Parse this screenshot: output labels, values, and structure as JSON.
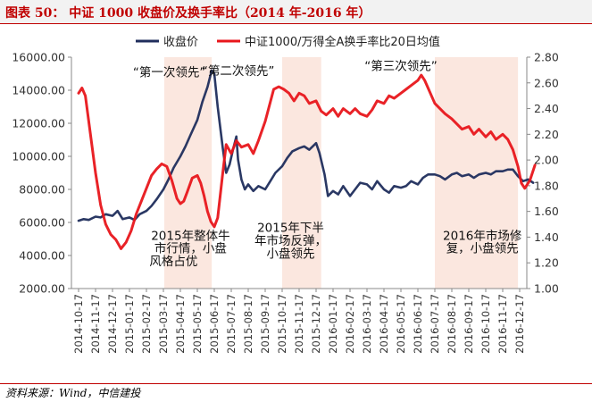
{
  "title": "图表 50：  中证 1000 收盘价及换手率比（2014 年-2016 年）",
  "source": "资料来源：Wind，中信建投",
  "colors": {
    "close": "#1f2d5c",
    "ratio": "#e8161b",
    "shade": "#fbe7df",
    "title": "#c00000"
  },
  "chart_data": {
    "type": "line",
    "legend_position": "top",
    "x_categories": [
      "2014-10-17",
      "2014-11-17",
      "2014-12-17",
      "2015-01-17",
      "2015-02-17",
      "2015-03-17",
      "2015-04-17",
      "2015-05-17",
      "2015-06-17",
      "2015-07-17",
      "2015-08-17",
      "2015-09-17",
      "2015-10-17",
      "2015-11-17",
      "2015-12-17",
      "2016-01-17",
      "2016-02-17",
      "2016-03-17",
      "2016-04-17",
      "2016-05-17",
      "2016-06-17",
      "2016-07-17",
      "2016-08-17",
      "2016-09-17",
      "2016-10-17",
      "2016-11-17",
      "2016-12-17"
    ],
    "y_left": {
      "ticks": [
        "2000.00",
        "4000.00",
        "6000.00",
        "8000.00",
        "10000.00",
        "12000.00",
        "14000.00",
        "16000.00"
      ],
      "range": [
        2000,
        16000
      ]
    },
    "y_right": {
      "ticks": [
        "1.00",
        "1.20",
        "1.40",
        "1.60",
        "1.80",
        "2.00",
        "2.20",
        "2.40",
        "2.60",
        "2.80"
      ],
      "range": [
        1.0,
        2.8
      ]
    },
    "series": [
      {
        "name": "收盘价",
        "axis": "left",
        "values": [
          [
            0,
            6100
          ],
          [
            0.3,
            6200
          ],
          [
            0.6,
            6150
          ],
          [
            1,
            6350
          ],
          [
            1.3,
            6300
          ],
          [
            1.6,
            6500
          ],
          [
            2,
            6400
          ],
          [
            2.3,
            6700
          ],
          [
            2.6,
            6200
          ],
          [
            3,
            6300
          ],
          [
            3.3,
            6150
          ],
          [
            3.6,
            6500
          ],
          [
            4,
            6700
          ],
          [
            4.3,
            7000
          ],
          [
            4.6,
            7400
          ],
          [
            5,
            8000
          ],
          [
            5.3,
            8600
          ],
          [
            5.6,
            9300
          ],
          [
            6,
            10000
          ],
          [
            6.3,
            10600
          ],
          [
            6.6,
            11300
          ],
          [
            7,
            12200
          ],
          [
            7.3,
            13300
          ],
          [
            7.6,
            14200
          ],
          [
            7.85,
            15200
          ],
          [
            8,
            15000
          ],
          [
            8.2,
            13000
          ],
          [
            8.5,
            10500
          ],
          [
            8.7,
            9000
          ],
          [
            8.9,
            9500
          ],
          [
            9.1,
            10400
          ],
          [
            9.3,
            11200
          ],
          [
            9.4,
            9800
          ],
          [
            9.6,
            8600
          ],
          [
            9.8,
            8000
          ],
          [
            10,
            8300
          ],
          [
            10.3,
            7900
          ],
          [
            10.6,
            8200
          ],
          [
            11,
            8000
          ],
          [
            11.3,
            8500
          ],
          [
            11.6,
            9000
          ],
          [
            12,
            9400
          ],
          [
            12.3,
            9900
          ],
          [
            12.6,
            10300
          ],
          [
            13,
            10500
          ],
          [
            13.3,
            10600
          ],
          [
            13.6,
            10400
          ],
          [
            14,
            10800
          ],
          [
            14.2,
            10200
          ],
          [
            14.5,
            8900
          ],
          [
            14.7,
            7600
          ],
          [
            15,
            7900
          ],
          [
            15.3,
            7700
          ],
          [
            15.6,
            8200
          ],
          [
            16,
            7600
          ],
          [
            16.3,
            8000
          ],
          [
            16.6,
            8400
          ],
          [
            17,
            8300
          ],
          [
            17.3,
            8000
          ],
          [
            17.6,
            8500
          ],
          [
            18,
            8000
          ],
          [
            18.3,
            7800
          ],
          [
            18.6,
            8200
          ],
          [
            19,
            8100
          ],
          [
            19.3,
            8200
          ],
          [
            19.6,
            8500
          ],
          [
            20,
            8300
          ],
          [
            20.3,
            8700
          ],
          [
            20.6,
            8900
          ],
          [
            21,
            8900
          ],
          [
            21.3,
            8800
          ],
          [
            21.6,
            8600
          ],
          [
            22,
            8900
          ],
          [
            22.3,
            9000
          ],
          [
            22.6,
            8800
          ],
          [
            23,
            8900
          ],
          [
            23.3,
            8700
          ],
          [
            23.6,
            8900
          ],
          [
            24,
            9000
          ],
          [
            24.3,
            8900
          ],
          [
            24.6,
            9100
          ],
          [
            25,
            9100
          ],
          [
            25.3,
            9200
          ],
          [
            25.6,
            9200
          ],
          [
            25.9,
            8800
          ],
          [
            26.2,
            8500
          ],
          [
            26.5,
            8600
          ],
          [
            26.8,
            8400
          ]
        ]
      },
      {
        "name": "中证1000/万得全A换手率比20日均值",
        "axis": "right",
        "values": [
          [
            0,
            2.52
          ],
          [
            0.2,
            2.56
          ],
          [
            0.4,
            2.5
          ],
          [
            0.7,
            2.2
          ],
          [
            1,
            1.9
          ],
          [
            1.3,
            1.65
          ],
          [
            1.6,
            1.5
          ],
          [
            1.9,
            1.42
          ],
          [
            2.2,
            1.38
          ],
          [
            2.5,
            1.31
          ],
          [
            2.8,
            1.36
          ],
          [
            3.1,
            1.45
          ],
          [
            3.4,
            1.58
          ],
          [
            3.7,
            1.68
          ],
          [
            4,
            1.78
          ],
          [
            4.3,
            1.88
          ],
          [
            4.6,
            1.93
          ],
          [
            4.9,
            1.97
          ],
          [
            5.2,
            1.95
          ],
          [
            5.5,
            1.84
          ],
          [
            5.8,
            1.7
          ],
          [
            6,
            1.66
          ],
          [
            6.2,
            1.68
          ],
          [
            6.4,
            1.75
          ],
          [
            6.7,
            1.86
          ],
          [
            7,
            1.88
          ],
          [
            7.2,
            1.82
          ],
          [
            7.4,
            1.72
          ],
          [
            7.6,
            1.6
          ],
          [
            7.8,
            1.52
          ],
          [
            8,
            1.48
          ],
          [
            8.2,
            1.55
          ],
          [
            8.5,
            1.9
          ],
          [
            8.7,
            2.12
          ],
          [
            9,
            2.05
          ],
          [
            9.3,
            2.15
          ],
          [
            9.6,
            2.1
          ],
          [
            10,
            2.12
          ],
          [
            10.3,
            2.05
          ],
          [
            10.6,
            2.15
          ],
          [
            11,
            2.3
          ],
          [
            11.3,
            2.45
          ],
          [
            11.5,
            2.55
          ],
          [
            11.8,
            2.57
          ],
          [
            12.1,
            2.55
          ],
          [
            12.4,
            2.52
          ],
          [
            12.7,
            2.46
          ],
          [
            13,
            2.52
          ],
          [
            13.3,
            2.5
          ],
          [
            13.6,
            2.44
          ],
          [
            14,
            2.46
          ],
          [
            14.3,
            2.38
          ],
          [
            14.6,
            2.35
          ],
          [
            15,
            2.4
          ],
          [
            15.3,
            2.34
          ],
          [
            15.6,
            2.4
          ],
          [
            16,
            2.36
          ],
          [
            16.3,
            2.4
          ],
          [
            16.6,
            2.36
          ],
          [
            17,
            2.34
          ],
          [
            17.3,
            2.39
          ],
          [
            17.6,
            2.46
          ],
          [
            18,
            2.44
          ],
          [
            18.3,
            2.5
          ],
          [
            18.6,
            2.48
          ],
          [
            19,
            2.52
          ],
          [
            19.3,
            2.55
          ],
          [
            19.6,
            2.58
          ],
          [
            20,
            2.62
          ],
          [
            20.2,
            2.66
          ],
          [
            20.4,
            2.62
          ],
          [
            20.6,
            2.56
          ],
          [
            20.8,
            2.5
          ],
          [
            21,
            2.44
          ],
          [
            21.3,
            2.4
          ],
          [
            21.6,
            2.36
          ],
          [
            22,
            2.32
          ],
          [
            22.3,
            2.28
          ],
          [
            22.6,
            2.24
          ],
          [
            23,
            2.26
          ],
          [
            23.3,
            2.2
          ],
          [
            23.6,
            2.24
          ],
          [
            24,
            2.18
          ],
          [
            24.3,
            2.22
          ],
          [
            24.6,
            2.16
          ],
          [
            25,
            2.2
          ],
          [
            25.3,
            2.16
          ],
          [
            25.6,
            2.08
          ],
          [
            25.9,
            1.95
          ],
          [
            26.1,
            1.82
          ],
          [
            26.3,
            1.78
          ],
          [
            26.6,
            1.84
          ],
          [
            26.9,
            1.96
          ]
        ]
      }
    ],
    "shaded_ranges": [
      [
        5.05,
        7.85
      ],
      [
        12.0,
        14.3
      ],
      [
        21.0,
        25.9
      ]
    ],
    "annotations": [
      {
        "text": "“第一次领先”",
        "x": 5.35,
        "y_right": 2.65
      },
      {
        "text": "“第二次领先”",
        "x": 9.4,
        "y_right": 2.66
      },
      {
        "text": "“第三次领先”",
        "x": 19.0,
        "y_right": 2.7
      },
      {
        "text": "2015年整体牛",
        "x": 6.6,
        "y_right": 1.38
      },
      {
        "text": "市行情，小盘",
        "x": 6.6,
        "y_right": 1.28
      },
      {
        "text": "风格占优",
        "x": 5.6,
        "y_right": 1.18
      },
      {
        "text": "2015年下半",
        "x": 12.5,
        "y_right": 1.44
      },
      {
        "text": "年市场反弹，",
        "x": 12.5,
        "y_right": 1.34
      },
      {
        "text": "小盘领先",
        "x": 12.5,
        "y_right": 1.24
      },
      {
        "text": "2016年市场修",
        "x": 23.8,
        "y_right": 1.38
      },
      {
        "text": "复，小盘领先",
        "x": 23.8,
        "y_right": 1.28
      }
    ]
  }
}
